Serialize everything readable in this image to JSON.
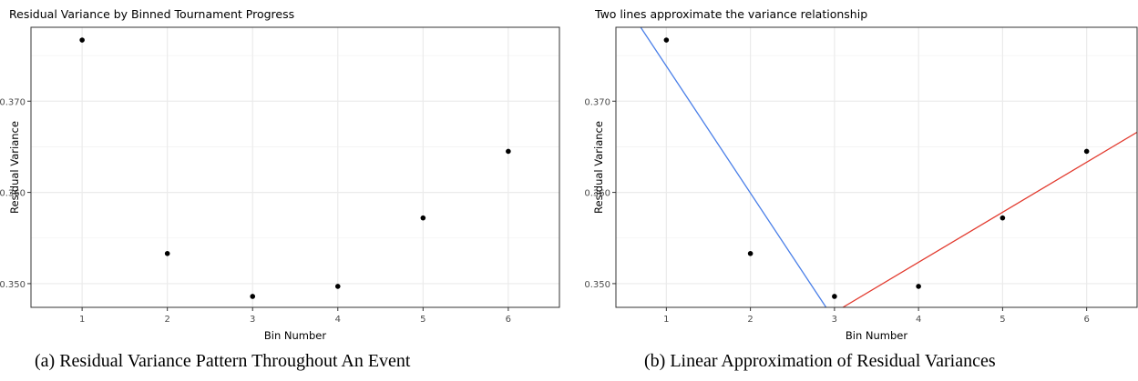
{
  "captions": {
    "a": "(a) Residual Variance Pattern Throughout An Event",
    "b": "(b) Linear Approximation of Residual Variances"
  },
  "colors": {
    "points": "#000000",
    "line_blue": "#4a7fe8",
    "line_red": "#e23a2e",
    "grid": "#ebebeb",
    "panel_border": "#333333"
  },
  "chart_data": [
    {
      "type": "scatter",
      "title": "Residual Variance by Binned Tournament Progress",
      "xlabel": "Bin Number",
      "ylabel": "Residual Variance",
      "xlim": [
        0.4,
        6.6
      ],
      "ylim": [
        0.3474,
        0.3781
      ],
      "xticks": [
        1,
        2,
        3,
        4,
        5,
        6
      ],
      "yticks": [
        0.35,
        0.36,
        0.37
      ],
      "ytick_labels": [
        "0.350",
        "0.360",
        "0.370"
      ],
      "grid": true,
      "x": [
        1,
        2,
        3,
        4,
        5,
        6
      ],
      "y": [
        0.3767,
        0.3533,
        0.3486,
        0.3497,
        0.3572,
        0.3645
      ]
    },
    {
      "type": "scatter",
      "title": "Two lines approximate the variance relationship",
      "xlabel": "Bin Number",
      "ylabel": "Residual Variance",
      "xlim": [
        0.4,
        6.6
      ],
      "ylim": [
        0.3474,
        0.3781
      ],
      "xticks": [
        1,
        2,
        3,
        4,
        5,
        6
      ],
      "yticks": [
        0.35,
        0.36,
        0.37
      ],
      "ytick_labels": [
        "0.350",
        "0.360",
        "0.370"
      ],
      "grid": true,
      "x": [
        1,
        2,
        3,
        4,
        5,
        6
      ],
      "y": [
        0.3767,
        0.3533,
        0.3486,
        0.3497,
        0.3572,
        0.3645
      ],
      "lines": [
        {
          "color": "blue",
          "points": [
            [
              0.4,
              0.3822
            ],
            [
              2.9,
              0.3474
            ]
          ]
        },
        {
          "color": "red",
          "points": [
            [
              3.1,
              0.3474
            ],
            [
              6.6,
              0.3666
            ]
          ]
        }
      ]
    }
  ]
}
